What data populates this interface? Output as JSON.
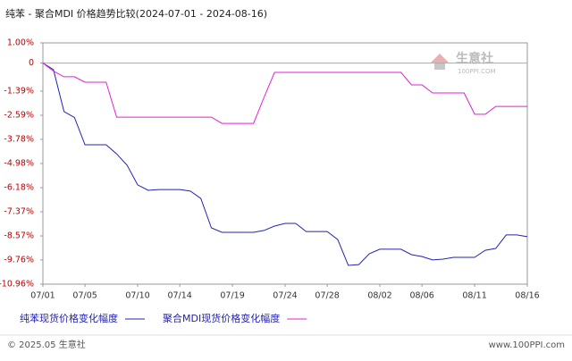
{
  "chart_data": {
    "type": "line",
    "title": "纯苯 - 聚合MDI 价格趋势比较(2024-07-01 - 2024-08-16)",
    "categories": [
      "07/01",
      null,
      null,
      null,
      "07/05",
      null,
      null,
      null,
      null,
      "07/10",
      null,
      null,
      null,
      "07/14",
      null,
      null,
      null,
      null,
      "07/19",
      null,
      null,
      null,
      null,
      "07/24",
      null,
      null,
      null,
      "07/28",
      null,
      null,
      null,
      null,
      "08/02",
      null,
      null,
      null,
      "08/06",
      null,
      null,
      null,
      null,
      "08/11",
      null,
      null,
      null,
      null,
      "08/16"
    ],
    "series": [
      {
        "name": "纯苯现货价格变化幅度",
        "color": "#2323b4",
        "values": [
          0,
          -0.33,
          -2.4,
          -2.7,
          -4.05,
          -4.05,
          -4.05,
          -4.5,
          -5.07,
          -6.04,
          -6.31,
          -6.27,
          -6.27,
          -6.27,
          -6.35,
          -6.71,
          -8.17,
          -8.39,
          -8.39,
          -8.39,
          -8.39,
          -8.3,
          -8.08,
          -7.95,
          -7.95,
          -8.35,
          -8.35,
          -8.35,
          -8.75,
          -10.03,
          -9.99,
          -9.45,
          -9.23,
          -9.23,
          -9.23,
          -9.5,
          -9.59,
          -9.76,
          -9.72,
          -9.63,
          -9.63,
          -9.63,
          -9.28,
          -9.19,
          -8.52,
          -8.52,
          -8.61
        ]
      },
      {
        "name": "聚合MDI现货价格变化幅度",
        "color": "#e020d8",
        "values": [
          0,
          -0.4,
          -0.68,
          -0.68,
          -0.95,
          -0.95,
          -0.95,
          -2.68,
          -2.68,
          -2.68,
          -2.68,
          -2.68,
          -2.68,
          -2.68,
          -2.68,
          -2.68,
          -2.68,
          -2.99,
          -2.99,
          -2.99,
          -2.99,
          -1.7,
          -0.46,
          -0.46,
          -0.46,
          -0.46,
          -0.46,
          -0.46,
          -0.46,
          -0.46,
          -0.46,
          -0.46,
          -0.46,
          -0.46,
          -0.46,
          -1.08,
          -1.08,
          -1.48,
          -1.48,
          -1.48,
          -1.48,
          -2.54,
          -2.54,
          -2.15,
          -2.15,
          -2.15,
          -2.15
        ]
      }
    ],
    "ylim": [
      -10.96,
      1
    ],
    "yticks": [
      {
        "value": 1,
        "label": "1.00%"
      },
      0,
      {
        "value": -1.39,
        "label": "-1.39%"
      },
      {
        "value": -2.59,
        "label": "-2.59%"
      },
      {
        "value": -3.78,
        "label": "-3.78%"
      },
      {
        "value": -4.98,
        "label": "-4.98%"
      },
      {
        "value": -6.18,
        "label": "-6.18%"
      },
      {
        "value": -7.37,
        "label": "-7.37%"
      },
      {
        "value": -8.57,
        "label": "-8.57%"
      },
      {
        "value": -9.76,
        "label": "-9.76%"
      },
      {
        "value": -10.96,
        "label": "-10.96%"
      }
    ],
    "zero_line": true,
    "watermark": "生意社",
    "watermark_url": "100PPI.COM",
    "footer_left": "© 2025.05 生意社",
    "footer_right": "www.100PPI.com"
  }
}
